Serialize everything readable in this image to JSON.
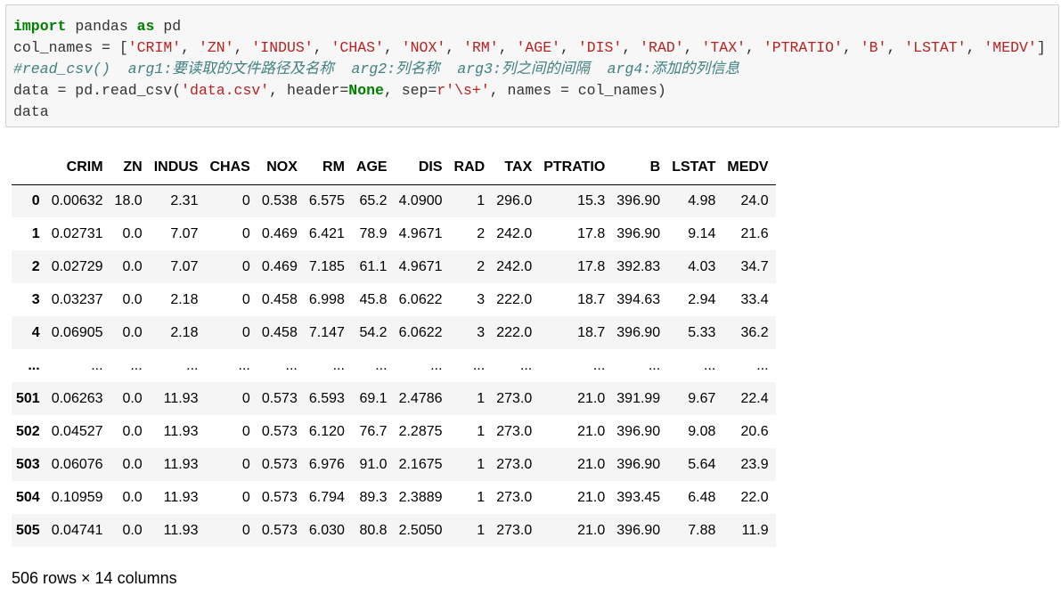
{
  "code": {
    "line1": {
      "kw1": "import",
      "t1": " pandas ",
      "kw2": "as",
      "t2": " pd"
    },
    "line2": {
      "prefix": "col_names = [",
      "names": [
        "CRIM",
        "ZN",
        "INDUS",
        "CHAS",
        "NOX",
        "RM",
        "AGE",
        "DIS",
        "RAD",
        "TAX",
        "PTRATIO",
        "B",
        "LSTAT",
        "MEDV"
      ],
      "suffix": "]"
    },
    "line3": "#read_csv()  arg1:要读取的文件路径及名称  arg2:列名称  arg3:列之间的间隔  arg4:添加的列信息",
    "line4": {
      "t1": "data = pd.read_csv(",
      "s1": "'data.csv'",
      "t2": ", header=",
      "kw": "None",
      "t3": ", sep=",
      "s2": "r'\\s+'",
      "t4": ", names = col_names)"
    },
    "line5": "data"
  },
  "table": {
    "columns": [
      "",
      "CRIM",
      "ZN",
      "INDUS",
      "CHAS",
      "NOX",
      "RM",
      "AGE",
      "DIS",
      "RAD",
      "TAX",
      "PTRATIO",
      "B",
      "LSTAT",
      "MEDV"
    ],
    "rows": [
      [
        "0",
        "0.00632",
        "18.0",
        "2.31",
        "0",
        "0.538",
        "6.575",
        "65.2",
        "4.0900",
        "1",
        "296.0",
        "15.3",
        "396.90",
        "4.98",
        "24.0"
      ],
      [
        "1",
        "0.02731",
        "0.0",
        "7.07",
        "0",
        "0.469",
        "6.421",
        "78.9",
        "4.9671",
        "2",
        "242.0",
        "17.8",
        "396.90",
        "9.14",
        "21.6"
      ],
      [
        "2",
        "0.02729",
        "0.0",
        "7.07",
        "0",
        "0.469",
        "7.185",
        "61.1",
        "4.9671",
        "2",
        "242.0",
        "17.8",
        "392.83",
        "4.03",
        "34.7"
      ],
      [
        "3",
        "0.03237",
        "0.0",
        "2.18",
        "0",
        "0.458",
        "6.998",
        "45.8",
        "6.0622",
        "3",
        "222.0",
        "18.7",
        "394.63",
        "2.94",
        "33.4"
      ],
      [
        "4",
        "0.06905",
        "0.0",
        "2.18",
        "0",
        "0.458",
        "7.147",
        "54.2",
        "6.0622",
        "3",
        "222.0",
        "18.7",
        "396.90",
        "5.33",
        "36.2"
      ],
      [
        "...",
        "...",
        "...",
        "...",
        "...",
        "...",
        "...",
        "...",
        "...",
        "...",
        "...",
        "...",
        "...",
        "...",
        "..."
      ],
      [
        "501",
        "0.06263",
        "0.0",
        "11.93",
        "0",
        "0.573",
        "6.593",
        "69.1",
        "2.4786",
        "1",
        "273.0",
        "21.0",
        "391.99",
        "9.67",
        "22.4"
      ],
      [
        "502",
        "0.04527",
        "0.0",
        "11.93",
        "0",
        "0.573",
        "6.120",
        "76.7",
        "2.2875",
        "1",
        "273.0",
        "21.0",
        "396.90",
        "9.08",
        "20.6"
      ],
      [
        "503",
        "0.06076",
        "0.0",
        "11.93",
        "0",
        "0.573",
        "6.976",
        "91.0",
        "2.1675",
        "1",
        "273.0",
        "21.0",
        "396.90",
        "5.64",
        "23.9"
      ],
      [
        "504",
        "0.10959",
        "0.0",
        "11.93",
        "0",
        "0.573",
        "6.794",
        "89.3",
        "2.3889",
        "1",
        "273.0",
        "21.0",
        "393.45",
        "6.48",
        "22.0"
      ],
      [
        "505",
        "0.04741",
        "0.0",
        "11.93",
        "0",
        "0.573",
        "6.030",
        "80.8",
        "2.5050",
        "1",
        "273.0",
        "21.0",
        "396.90",
        "7.88",
        "11.9"
      ]
    ]
  },
  "caption": "506 rows × 14 columns"
}
